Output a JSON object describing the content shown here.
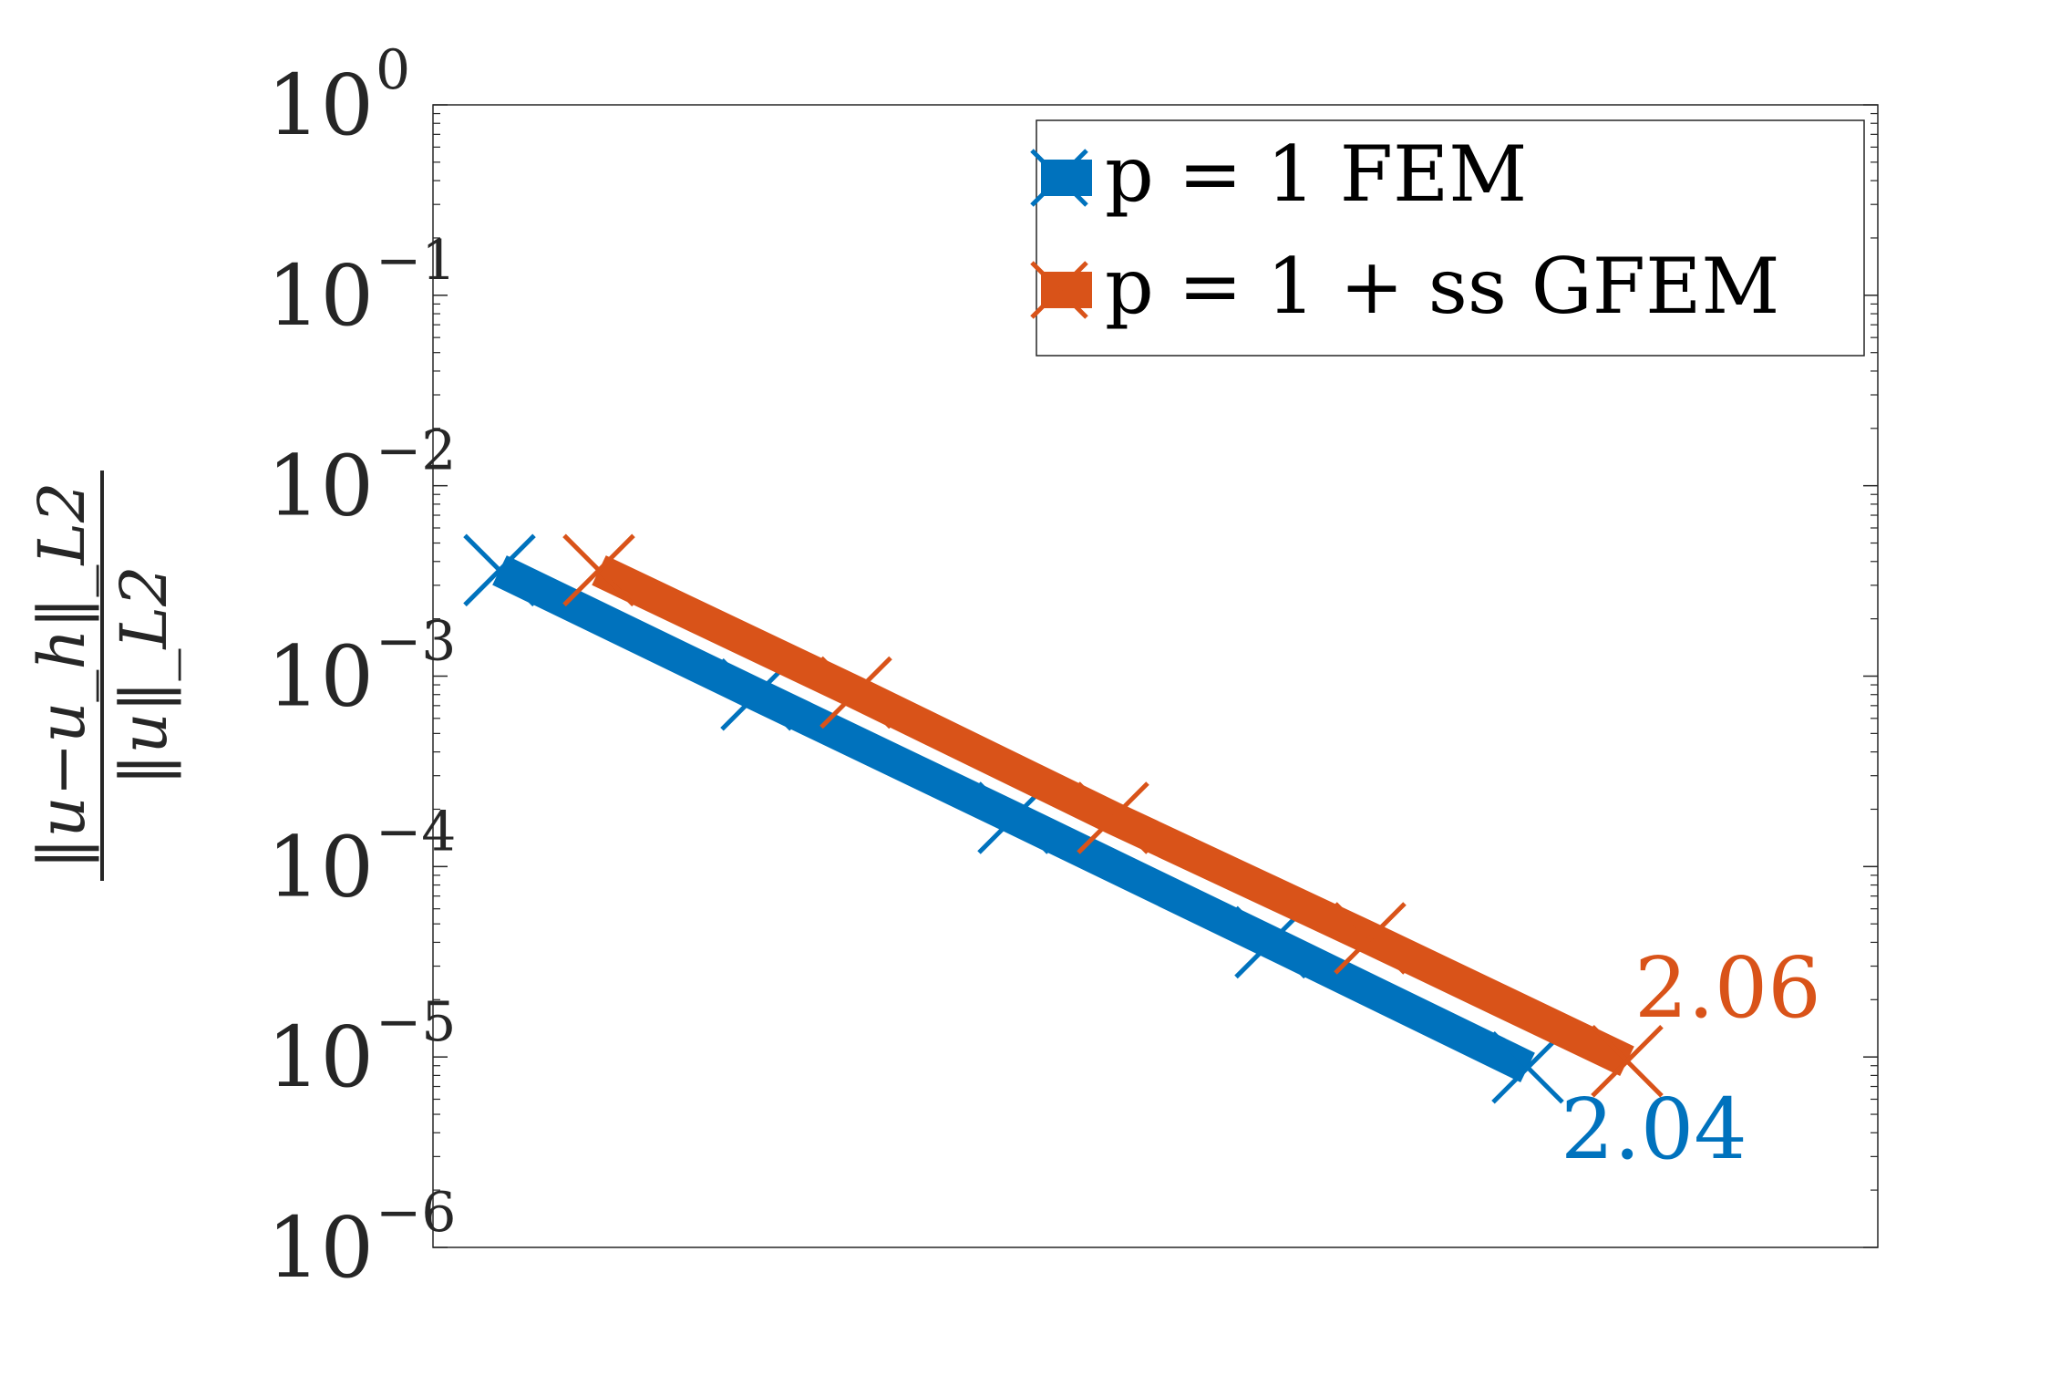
{
  "chart_data": {
    "type": "line",
    "xscale": "log",
    "yscale": "log",
    "ylim": [
      1e-06,
      1
    ],
    "grid": false,
    "legend_position": "top-right",
    "yticks": [
      {
        "base": "10",
        "exp": "0"
      },
      {
        "base": "10",
        "exp": "−1"
      },
      {
        "base": "10",
        "exp": "−2"
      },
      {
        "base": "10",
        "exp": "−3"
      },
      {
        "base": "10",
        "exp": "−4"
      },
      {
        "base": "10",
        "exp": "−5"
      },
      {
        "base": "10",
        "exp": "−6"
      }
    ],
    "ylabel": {
      "numerator": "‖u−u_h‖_L2",
      "denominator": "‖u‖_L2"
    },
    "series": [
      {
        "name": "p = 1 FEM",
        "color": "#0072BD",
        "marker": "x",
        "points": [
          {
            "i": 0,
            "y": 0.0036
          },
          {
            "i": 1,
            "y": 0.0008
          },
          {
            "i": 2,
            "y": 0.00018
          },
          {
            "i": 3,
            "y": 4e-05
          },
          {
            "i": 4,
            "y": 8.8e-06
          }
        ],
        "slope_label": "2.04"
      },
      {
        "name": "p = 1 + ss GFEM",
        "color": "#D95319",
        "marker": "x",
        "points": [
          {
            "i": 0,
            "y": 0.0036
          },
          {
            "i": 1,
            "y": 0.00082
          },
          {
            "i": 2,
            "y": 0.00018
          },
          {
            "i": 3,
            "y": 4.2e-05
          },
          {
            "i": 4,
            "y": 9.5e-06
          }
        ],
        "slope_label": "2.06"
      }
    ]
  }
}
